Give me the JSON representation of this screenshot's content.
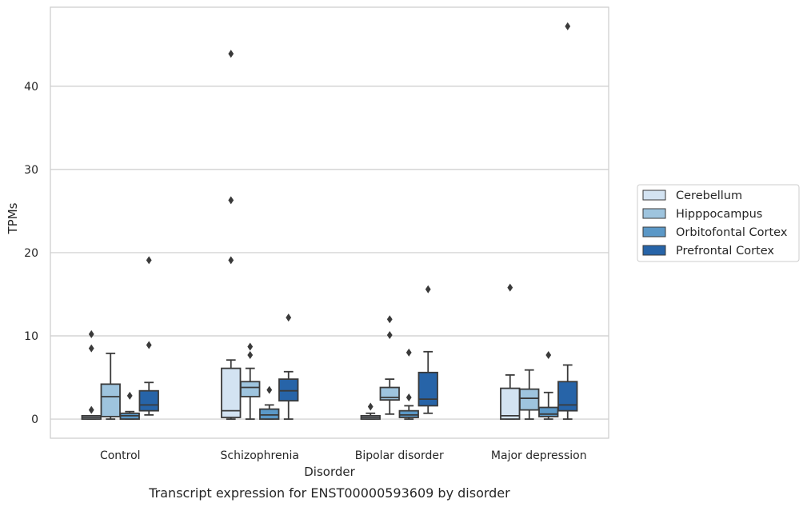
{
  "chart_data": {
    "type": "box",
    "title": "",
    "caption": "Transcript expression for ENST00000593609 by disorder",
    "xlabel": "Disorder",
    "ylabel": "TPMs",
    "ylim": [
      -2.3,
      49.5
    ],
    "yticks": [
      0,
      10,
      20,
      30,
      40
    ],
    "grid": "horizontal",
    "legend_placement": "right",
    "categories": [
      "Control",
      "Schizophrenia",
      "Bipolar disorder",
      "Major depression"
    ],
    "series": [
      {
        "name": "Cerebellum",
        "color": "#d3e3f2",
        "boxes": [
          {
            "whislo": 0.0,
            "q1": 0.0,
            "med": 0.2,
            "q3": 0.4,
            "whishi": 0.4,
            "fliers": [
              1.1,
              8.5,
              10.2
            ]
          },
          {
            "whislo": 0.0,
            "q1": 0.2,
            "med": 1.0,
            "q3": 6.1,
            "whishi": 7.1,
            "fliers": [
              19.1,
              26.3,
              43.9
            ]
          },
          {
            "whislo": 0.0,
            "q1": 0.0,
            "med": 0.2,
            "q3": 0.4,
            "whishi": 0.7,
            "fliers": [
              1.5
            ]
          },
          {
            "whislo": 0.0,
            "q1": 0.0,
            "med": 0.4,
            "q3": 3.7,
            "whishi": 5.3,
            "fliers": [
              15.8
            ]
          }
        ]
      },
      {
        "name": "Hipppocampus",
        "color": "#9ec4de",
        "boxes": [
          {
            "whislo": 0.0,
            "q1": 0.3,
            "med": 2.7,
            "q3": 4.2,
            "whishi": 7.9,
            "fliers": []
          },
          {
            "whislo": 0.0,
            "q1": 2.7,
            "med": 3.8,
            "q3": 4.5,
            "whishi": 6.1,
            "fliers": [
              7.7,
              8.7
            ]
          },
          {
            "whislo": 0.6,
            "q1": 2.3,
            "med": 2.6,
            "q3": 3.8,
            "whishi": 4.8,
            "fliers": [
              10.1,
              12.0
            ]
          },
          {
            "whislo": 0.0,
            "q1": 1.1,
            "med": 2.5,
            "q3": 3.6,
            "whishi": 5.9,
            "fliers": []
          }
        ]
      },
      {
        "name": "Orbitofontal Cortex",
        "color": "#5b98c7",
        "boxes": [
          {
            "whislo": 0.0,
            "q1": 0.0,
            "med": 0.4,
            "q3": 0.7,
            "whishi": 0.9,
            "fliers": [
              2.8
            ]
          },
          {
            "whislo": 0.0,
            "q1": 0.0,
            "med": 0.5,
            "q3": 1.2,
            "whishi": 1.7,
            "fliers": [
              3.5
            ]
          },
          {
            "whislo": 0.0,
            "q1": 0.2,
            "med": 0.5,
            "q3": 1.0,
            "whishi": 1.6,
            "fliers": [
              2.6,
              8.0
            ]
          },
          {
            "whislo": 0.0,
            "q1": 0.3,
            "med": 0.6,
            "q3": 1.4,
            "whishi": 3.2,
            "fliers": [
              7.7
            ]
          }
        ]
      },
      {
        "name": "Prefrontal Cortex",
        "color": "#2764a8",
        "boxes": [
          {
            "whislo": 0.5,
            "q1": 1.0,
            "med": 1.7,
            "q3": 3.4,
            "whishi": 4.4,
            "fliers": [
              8.9,
              19.1
            ]
          },
          {
            "whislo": 0.0,
            "q1": 2.2,
            "med": 3.4,
            "q3": 4.8,
            "whishi": 5.7,
            "fliers": [
              12.2
            ]
          },
          {
            "whislo": 0.7,
            "q1": 1.6,
            "med": 2.4,
            "q3": 5.6,
            "whishi": 8.1,
            "fliers": [
              15.6
            ]
          },
          {
            "whislo": 0.0,
            "q1": 1.0,
            "med": 1.7,
            "q3": 4.5,
            "whishi": 6.5,
            "fliers": [
              47.2
            ]
          }
        ]
      }
    ]
  }
}
